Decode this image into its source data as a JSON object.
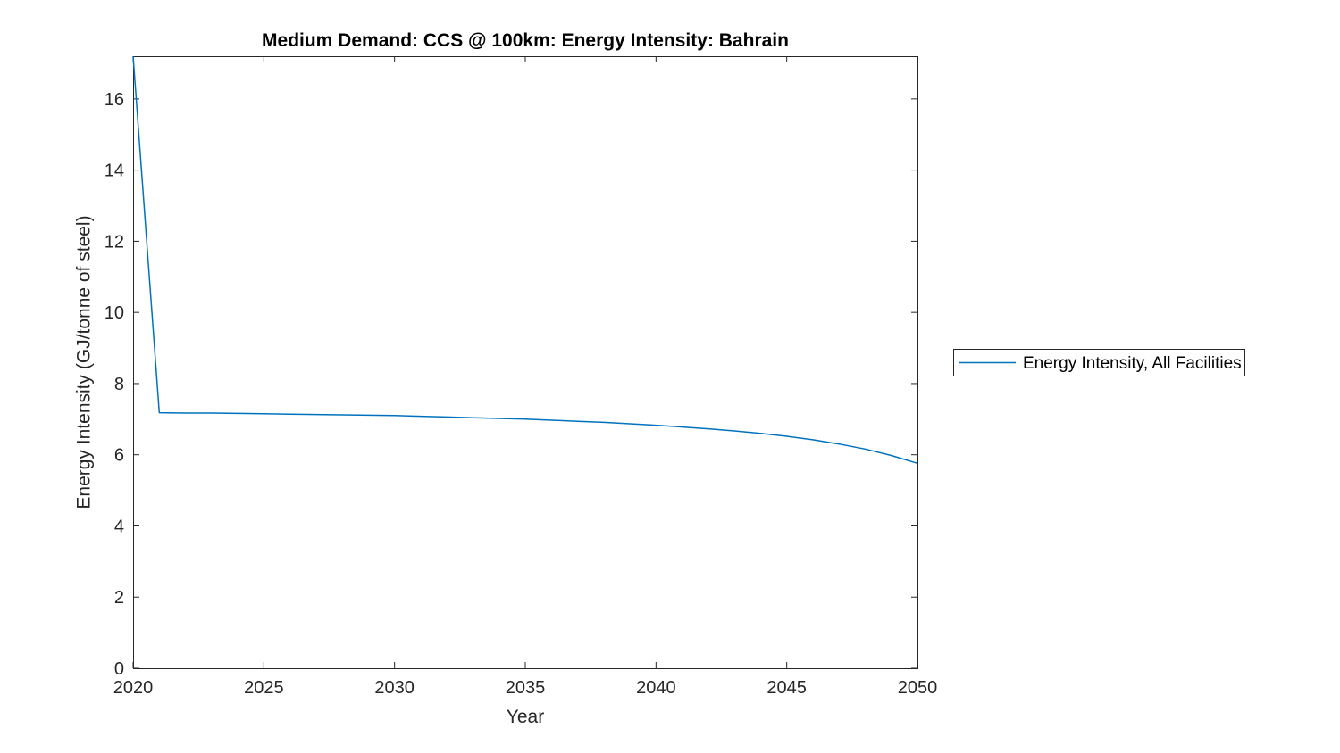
{
  "page": {
    "background": "#ffffff"
  },
  "chart_data": {
    "type": "line",
    "title": "Medium Demand: CCS @ 100km: Energy Intensity: Bahrain",
    "xlabel": "Year",
    "ylabel": "Energy Intensity (GJ/tonne of steel)",
    "xlim": [
      2020,
      2050
    ],
    "ylim": [
      0,
      17.2
    ],
    "xticks": [
      2020,
      2025,
      2030,
      2035,
      2040,
      2045,
      2050
    ],
    "yticks": [
      0,
      2,
      4,
      6,
      8,
      10,
      12,
      14,
      16
    ],
    "grid": false,
    "box": true,
    "tick_direction": "in",
    "axis_color": "#262626",
    "legend": {
      "position": "outside-right",
      "border_color": "#262626",
      "background": "#ffffff",
      "entries": [
        "Energy Intensity, All Facilities"
      ]
    },
    "series": [
      {
        "name": "Energy Intensity, All Facilities",
        "color": "#0072BD",
        "x": [
          2020,
          2021,
          2022,
          2023,
          2024,
          2025,
          2026,
          2027,
          2028,
          2029,
          2030,
          2031,
          2032,
          2033,
          2034,
          2035,
          2036,
          2037,
          2038,
          2039,
          2040,
          2041,
          2042,
          2043,
          2044,
          2045,
          2046,
          2047,
          2048,
          2049,
          2050
        ],
        "values": [
          17.2,
          7.18,
          7.17,
          7.17,
          7.16,
          7.15,
          7.14,
          7.13,
          7.12,
          7.11,
          7.1,
          7.08,
          7.06,
          7.04,
          7.02,
          7.0,
          6.97,
          6.94,
          6.91,
          6.87,
          6.83,
          6.78,
          6.73,
          6.67,
          6.6,
          6.52,
          6.42,
          6.3,
          6.16,
          5.98,
          5.76
        ]
      }
    ]
  }
}
